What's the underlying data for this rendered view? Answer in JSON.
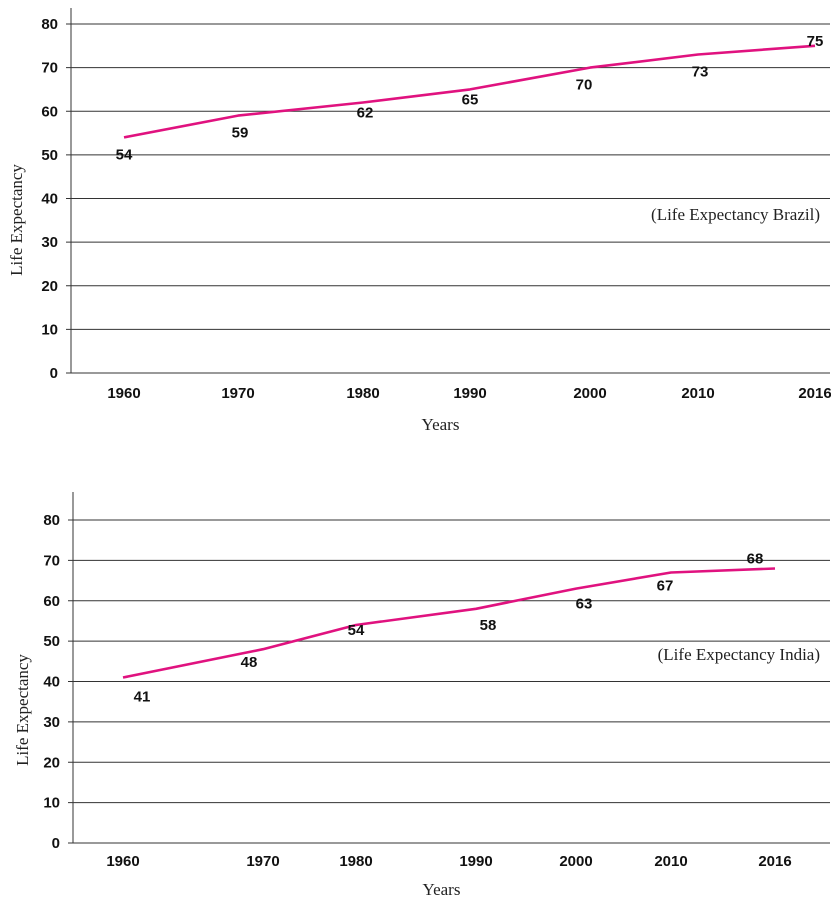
{
  "chart_data": [
    {
      "type": "line",
      "annotation": "(Life Expectancy Brazil)",
      "xlabel": "Years",
      "ylabel": "Life Expectancy",
      "ylim": [
        0,
        80
      ],
      "yticks": [
        "0",
        "10",
        "20",
        "30",
        "40",
        "50",
        "60",
        "70",
        "80"
      ],
      "x_tick_labels": [
        "1960",
        "1970",
        "1980",
        "1990",
        "2000",
        "2010",
        "2016"
      ],
      "x": [
        1960,
        1970,
        1980,
        1990,
        2000,
        2010,
        2016
      ],
      "series": [
        {
          "values": [
            54,
            59,
            62,
            65,
            70,
            73,
            75
          ],
          "labels": [
            "54",
            "59",
            "62",
            "65",
            "70",
            "73",
            "75"
          ],
          "color": "#e0127f"
        }
      ],
      "grid": "horizontal"
    },
    {
      "type": "line",
      "annotation": "(Life Expectancy India)",
      "xlabel": "Years",
      "ylabel": "Life Expectancy",
      "ylim": [
        0,
        80
      ],
      "yticks": [
        "0",
        "10",
        "20",
        "30",
        "40",
        "50",
        "60",
        "70",
        "80"
      ],
      "x_tick_labels": [
        "1960",
        "1970",
        "1980",
        "1990",
        "2000",
        "2010",
        "2016"
      ],
      "x": [
        1960,
        1970,
        1980,
        1990,
        2000,
        2010,
        2016
      ],
      "series": [
        {
          "values": [
            41,
            48,
            54,
            58,
            63,
            67,
            68
          ],
          "labels": [
            "41",
            "48",
            "54",
            "58",
            "63",
            "67",
            "68"
          ],
          "color": "#e0127f"
        }
      ],
      "grid": "horizontal"
    }
  ]
}
